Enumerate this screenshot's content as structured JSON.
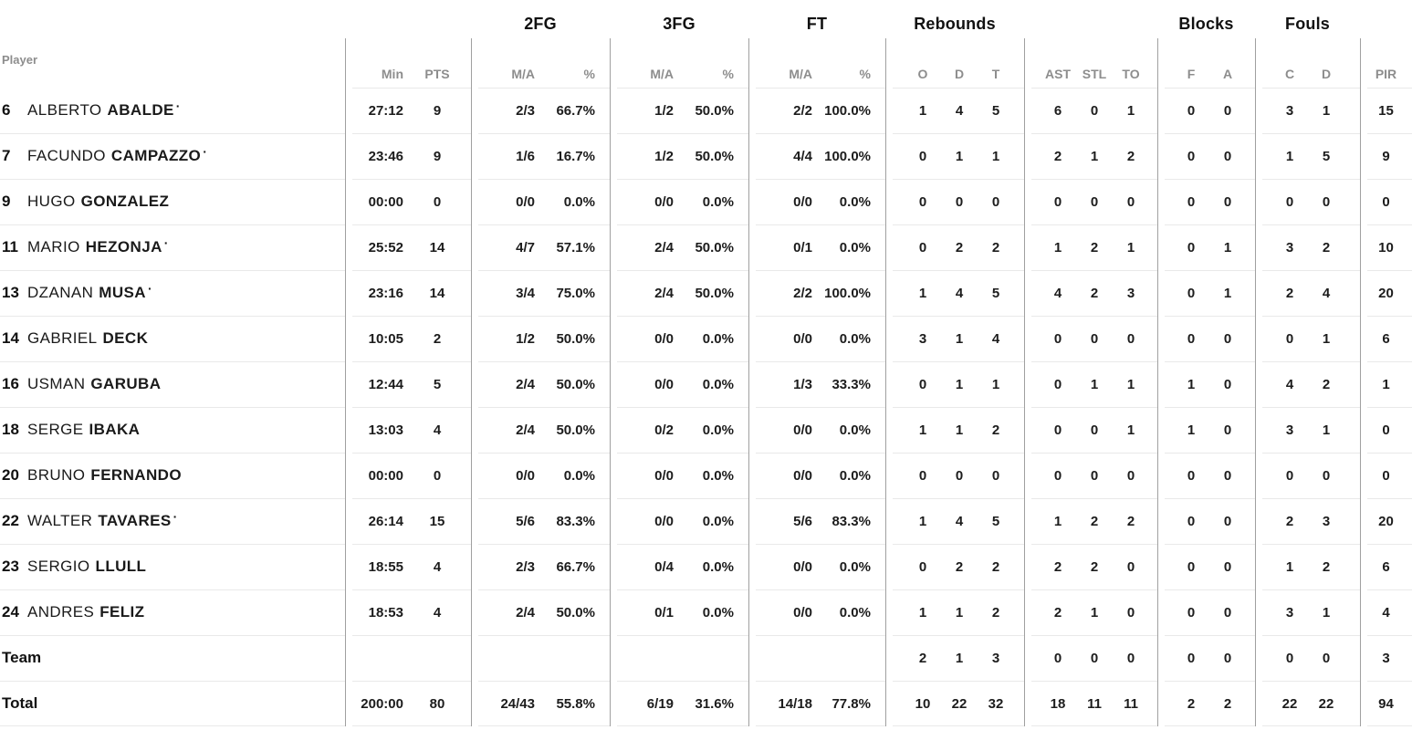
{
  "table": {
    "colors": {
      "background": "#ffffff",
      "text": "#1c1c1c",
      "header_text": "#8d8d8d",
      "group_header_text": "#111111",
      "divider_line": "#a0a0a0",
      "row_line": "#e9e9e9"
    },
    "player_col_label": "Player",
    "starter_marker": "·",
    "groups": {
      "fg2": "2FG",
      "fg3": "3FG",
      "ft": "FT",
      "rebounds": "Rebounds",
      "blocks": "Blocks",
      "fouls": "Fouls"
    },
    "headers": {
      "min": "Min",
      "pts": "PTS",
      "fg2_ma": "M/A",
      "fg2_pct": "%",
      "fg3_ma": "M/A",
      "fg3_pct": "%",
      "ft_ma": "M/A",
      "ft_pct": "%",
      "reb_o": "O",
      "reb_d": "D",
      "reb_t": "T",
      "ast": "AST",
      "stl": "STL",
      "to": "TO",
      "blk_f": "F",
      "blk_a": "A",
      "foul_c": "C",
      "foul_d": "D",
      "pir": "PIR"
    },
    "rows": [
      {
        "type": "player",
        "num": "6",
        "first": "ALBERTO",
        "last": "ABALDE",
        "starter": true,
        "min": "27:12",
        "pts": "9",
        "fg2": "2/3",
        "fg2p": "66.7%",
        "fg3": "1/2",
        "fg3p": "50.0%",
        "ft": "2/2",
        "ftp": "100.0%",
        "reb": [
          "1",
          "4",
          "5"
        ],
        "ast": [
          "6",
          "0",
          "1"
        ],
        "blk": [
          "0",
          "0"
        ],
        "fouls": [
          "3",
          "1"
        ],
        "pir": "15"
      },
      {
        "type": "player",
        "num": "7",
        "first": "FACUNDO",
        "last": "CAMPAZZO",
        "starter": true,
        "min": "23:46",
        "pts": "9",
        "fg2": "1/6",
        "fg2p": "16.7%",
        "fg3": "1/2",
        "fg3p": "50.0%",
        "ft": "4/4",
        "ftp": "100.0%",
        "reb": [
          "0",
          "1",
          "1"
        ],
        "ast": [
          "2",
          "1",
          "2"
        ],
        "blk": [
          "0",
          "0"
        ],
        "fouls": [
          "1",
          "5"
        ],
        "pir": "9"
      },
      {
        "type": "player",
        "num": "9",
        "first": "HUGO",
        "last": "GONZALEZ",
        "starter": false,
        "min": "00:00",
        "pts": "0",
        "fg2": "0/0",
        "fg2p": "0.0%",
        "fg3": "0/0",
        "fg3p": "0.0%",
        "ft": "0/0",
        "ftp": "0.0%",
        "reb": [
          "0",
          "0",
          "0"
        ],
        "ast": [
          "0",
          "0",
          "0"
        ],
        "blk": [
          "0",
          "0"
        ],
        "fouls": [
          "0",
          "0"
        ],
        "pir": "0"
      },
      {
        "type": "player",
        "num": "11",
        "first": "MARIO",
        "last": "HEZONJA",
        "starter": true,
        "min": "25:52",
        "pts": "14",
        "fg2": "4/7",
        "fg2p": "57.1%",
        "fg3": "2/4",
        "fg3p": "50.0%",
        "ft": "0/1",
        "ftp": "0.0%",
        "reb": [
          "0",
          "2",
          "2"
        ],
        "ast": [
          "1",
          "2",
          "1"
        ],
        "blk": [
          "0",
          "1"
        ],
        "fouls": [
          "3",
          "2"
        ],
        "pir": "10"
      },
      {
        "type": "player",
        "num": "13",
        "first": "DZANAN",
        "last": "MUSA",
        "starter": true,
        "min": "23:16",
        "pts": "14",
        "fg2": "3/4",
        "fg2p": "75.0%",
        "fg3": "2/4",
        "fg3p": "50.0%",
        "ft": "2/2",
        "ftp": "100.0%",
        "reb": [
          "1",
          "4",
          "5"
        ],
        "ast": [
          "4",
          "2",
          "3"
        ],
        "blk": [
          "0",
          "1"
        ],
        "fouls": [
          "2",
          "4"
        ],
        "pir": "20"
      },
      {
        "type": "player",
        "num": "14",
        "first": "GABRIEL",
        "last": "DECK",
        "starter": false,
        "min": "10:05",
        "pts": "2",
        "fg2": "1/2",
        "fg2p": "50.0%",
        "fg3": "0/0",
        "fg3p": "0.0%",
        "ft": "0/0",
        "ftp": "0.0%",
        "reb": [
          "3",
          "1",
          "4"
        ],
        "ast": [
          "0",
          "0",
          "0"
        ],
        "blk": [
          "0",
          "0"
        ],
        "fouls": [
          "0",
          "1"
        ],
        "pir": "6"
      },
      {
        "type": "player",
        "num": "16",
        "first": "USMAN",
        "last": "GARUBA",
        "starter": false,
        "min": "12:44",
        "pts": "5",
        "fg2": "2/4",
        "fg2p": "50.0%",
        "fg3": "0/0",
        "fg3p": "0.0%",
        "ft": "1/3",
        "ftp": "33.3%",
        "reb": [
          "0",
          "1",
          "1"
        ],
        "ast": [
          "0",
          "1",
          "1"
        ],
        "blk": [
          "1",
          "0"
        ],
        "fouls": [
          "4",
          "2"
        ],
        "pir": "1"
      },
      {
        "type": "player",
        "num": "18",
        "first": "SERGE",
        "last": "IBAKA",
        "starter": false,
        "min": "13:03",
        "pts": "4",
        "fg2": "2/4",
        "fg2p": "50.0%",
        "fg3": "0/2",
        "fg3p": "0.0%",
        "ft": "0/0",
        "ftp": "0.0%",
        "reb": [
          "1",
          "1",
          "2"
        ],
        "ast": [
          "0",
          "0",
          "1"
        ],
        "blk": [
          "1",
          "0"
        ],
        "fouls": [
          "3",
          "1"
        ],
        "pir": "0"
      },
      {
        "type": "player",
        "num": "20",
        "first": "BRUNO",
        "last": "FERNANDO",
        "starter": false,
        "min": "00:00",
        "pts": "0",
        "fg2": "0/0",
        "fg2p": "0.0%",
        "fg3": "0/0",
        "fg3p": "0.0%",
        "ft": "0/0",
        "ftp": "0.0%",
        "reb": [
          "0",
          "0",
          "0"
        ],
        "ast": [
          "0",
          "0",
          "0"
        ],
        "blk": [
          "0",
          "0"
        ],
        "fouls": [
          "0",
          "0"
        ],
        "pir": "0"
      },
      {
        "type": "player",
        "num": "22",
        "first": "WALTER",
        "last": "TAVARES",
        "starter": true,
        "min": "26:14",
        "pts": "15",
        "fg2": "5/6",
        "fg2p": "83.3%",
        "fg3": "0/0",
        "fg3p": "0.0%",
        "ft": "5/6",
        "ftp": "83.3%",
        "reb": [
          "1",
          "4",
          "5"
        ],
        "ast": [
          "1",
          "2",
          "2"
        ],
        "blk": [
          "0",
          "0"
        ],
        "fouls": [
          "2",
          "3"
        ],
        "pir": "20"
      },
      {
        "type": "player",
        "num": "23",
        "first": "SERGIO",
        "last": "LLULL",
        "starter": false,
        "min": "18:55",
        "pts": "4",
        "fg2": "2/3",
        "fg2p": "66.7%",
        "fg3": "0/4",
        "fg3p": "0.0%",
        "ft": "0/0",
        "ftp": "0.0%",
        "reb": [
          "0",
          "2",
          "2"
        ],
        "ast": [
          "2",
          "2",
          "0"
        ],
        "blk": [
          "0",
          "0"
        ],
        "fouls": [
          "1",
          "2"
        ],
        "pir": "6"
      },
      {
        "type": "player",
        "num": "24",
        "first": "ANDRES",
        "last": "FELIZ",
        "starter": false,
        "min": "18:53",
        "pts": "4",
        "fg2": "2/4",
        "fg2p": "50.0%",
        "fg3": "0/1",
        "fg3p": "0.0%",
        "ft": "0/0",
        "ftp": "0.0%",
        "reb": [
          "1",
          "1",
          "2"
        ],
        "ast": [
          "2",
          "1",
          "0"
        ],
        "blk": [
          "0",
          "0"
        ],
        "fouls": [
          "3",
          "1"
        ],
        "pir": "4"
      },
      {
        "type": "team",
        "label": "Team",
        "min": "",
        "pts": "",
        "fg2": "",
        "fg2p": "",
        "fg3": "",
        "fg3p": "",
        "ft": "",
        "ftp": "",
        "reb": [
          "2",
          "1",
          "3"
        ],
        "ast": [
          "0",
          "0",
          "0"
        ],
        "blk": [
          "0",
          "0"
        ],
        "fouls": [
          "0",
          "0"
        ],
        "pir": "3"
      },
      {
        "type": "total",
        "label": "Total",
        "min": "200:00",
        "pts": "80",
        "fg2": "24/43",
        "fg2p": "55.8%",
        "fg3": "6/19",
        "fg3p": "31.6%",
        "ft": "14/18",
        "ftp": "77.8%",
        "reb": [
          "10",
          "22",
          "32"
        ],
        "ast": [
          "18",
          "11",
          "11"
        ],
        "blk": [
          "2",
          "2"
        ],
        "fouls": [
          "22",
          "22"
        ],
        "pir": "94"
      }
    ]
  }
}
